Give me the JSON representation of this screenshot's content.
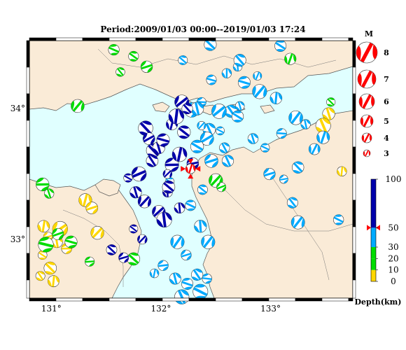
{
  "title": "Period:2009/01/03 00:00--2019/01/03 17:24",
  "axes": {
    "lon_ticks": [
      {
        "value": 131,
        "label": "131°"
      },
      {
        "value": 132,
        "label": "132°"
      },
      {
        "value": 133,
        "label": "133°"
      }
    ],
    "lat_ticks": [
      {
        "value": 34,
        "label": "34°"
      },
      {
        "value": 33,
        "label": "33°"
      }
    ],
    "lon_range": [
      130.8,
      133.75
    ],
    "lat_range": [
      32.55,
      34.52
    ]
  },
  "colors": {
    "land": "#faebd7",
    "sea": "#e0ffff",
    "coast": "#555555",
    "mainshock": "#ff0000",
    "depth_0_10": "#ffd700",
    "depth_10_20": "#00dd00",
    "depth_20_30": "#00dd00",
    "depth_30_50": "#00aaff",
    "depth_50_100": "#0000aa"
  },
  "legend": {
    "magnitude_title": "M",
    "magnitudes": [
      "8",
      "7",
      "6",
      "5",
      "4",
      "3"
    ],
    "depth_title": "Depth(km)",
    "depth_labels": [
      "100",
      "50",
      "30",
      "20",
      "10",
      "0"
    ],
    "current_depth_marker": 50
  },
  "chart_data": {
    "type": "scatter",
    "title": "Period:2009/01/03 00:00--2019/01/03 17:24",
    "xlabel": "",
    "ylabel": "",
    "xlim": [
      130.8,
      133.75
    ],
    "ylim": [
      32.55,
      34.52
    ],
    "mainshock": {
      "lon": 132.27,
      "lat": 33.54,
      "depth": 50,
      "magnitude": 4.5
    },
    "events_by_depth_class": [
      {
        "class": "0-10 km",
        "color": "#ffd700",
        "points": [
          [
            130.93,
            33.1
          ],
          [
            130.97,
            33.02
          ],
          [
            131.05,
            32.98
          ],
          [
            130.92,
            32.88
          ],
          [
            130.99,
            32.78
          ],
          [
            131.14,
            32.93
          ],
          [
            131.31,
            33.3
          ],
          [
            131.37,
            33.24
          ],
          [
            131.42,
            33.05
          ],
          [
            133.53,
            33.96
          ],
          [
            133.65,
            33.52
          ],
          [
            133.48,
            33.87
          ],
          [
            130.9,
            32.72
          ],
          [
            131.08,
            33.08
          ],
          [
            131.02,
            32.68
          ]
        ]
      },
      {
        "class": "10-30 km",
        "color": "#00dd00",
        "points": [
          [
            130.92,
            33.42
          ],
          [
            130.98,
            33.35
          ],
          [
            131.06,
            33.04
          ],
          [
            131.18,
            32.98
          ],
          [
            131.35,
            32.83
          ],
          [
            131.57,
            34.45
          ],
          [
            131.63,
            34.28
          ],
          [
            131.75,
            34.4
          ],
          [
            131.87,
            34.32
          ],
          [
            131.75,
            32.85
          ],
          [
            132.5,
            33.45
          ],
          [
            132.55,
            33.4
          ],
          [
            133.18,
            34.38
          ],
          [
            133.55,
            34.05
          ],
          [
            131.24,
            34.02
          ],
          [
            130.95,
            32.96
          ]
        ]
      },
      {
        "class": "30-50 km",
        "color": "#00aaff",
        "points": [
          [
            132.13,
            32.7
          ],
          [
            132.24,
            32.66
          ],
          [
            132.33,
            32.73
          ],
          [
            132.23,
            32.88
          ],
          [
            132.15,
            32.98
          ],
          [
            132.02,
            32.8
          ],
          [
            132.19,
            32.56
          ],
          [
            132.36,
            32.6
          ],
          [
            132.43,
            32.98
          ],
          [
            132.36,
            33.1
          ],
          [
            132.27,
            33.26
          ],
          [
            132.38,
            33.38
          ],
          [
            132.46,
            33.6
          ],
          [
            132.58,
            33.7
          ],
          [
            132.54,
            33.83
          ],
          [
            132.64,
            33.98
          ],
          [
            132.72,
            34.02
          ],
          [
            132.7,
            33.94
          ],
          [
            132.44,
            33.84
          ],
          [
            132.37,
            34.05
          ],
          [
            132.28,
            33.99
          ],
          [
            132.37,
            33.87
          ],
          [
            132.42,
            33.77
          ],
          [
            132.33,
            33.71
          ],
          [
            132.46,
            34.22
          ],
          [
            132.6,
            34.27
          ],
          [
            132.7,
            34.32
          ],
          [
            132.76,
            34.2
          ],
          [
            132.9,
            34.13
          ],
          [
            133.05,
            34.08
          ],
          [
            132.84,
            33.77
          ],
          [
            132.95,
            33.7
          ],
          [
            133.1,
            33.81
          ],
          [
            133.23,
            33.93
          ],
          [
            133.32,
            33.88
          ],
          [
            133.48,
            33.78
          ],
          [
            133.4,
            33.69
          ],
          [
            133.25,
            33.55
          ],
          [
            133.12,
            33.46
          ],
          [
            132.99,
            33.5
          ],
          [
            133.2,
            33.28
          ],
          [
            133.25,
            33.13
          ],
          [
            133.62,
            33.15
          ],
          [
            132.08,
            33.44
          ],
          [
            131.94,
            32.74
          ],
          [
            132.42,
            32.7
          ],
          [
            132.88,
            34.25
          ],
          [
            133.09,
            34.48
          ],
          [
            132.45,
            34.49
          ],
          [
            132.72,
            34.37
          ],
          [
            132.2,
            34.37
          ],
          [
            132.33,
            34.0
          ],
          [
            132.53,
            33.98
          ],
          [
            132.61,
            33.6
          ]
        ]
      },
      {
        "class": "50-100 km",
        "color": "#0000aa",
        "points": [
          [
            131.86,
            33.85
          ],
          [
            131.89,
            33.77
          ],
          [
            131.93,
            33.68
          ],
          [
            131.98,
            33.7
          ],
          [
            132.02,
            33.76
          ],
          [
            132.1,
            33.88
          ],
          [
            132.14,
            33.94
          ],
          [
            132.21,
            33.82
          ],
          [
            132.1,
            33.57
          ],
          [
            131.92,
            33.6
          ],
          [
            131.8,
            33.5
          ],
          [
            131.7,
            33.47
          ],
          [
            131.77,
            33.36
          ],
          [
            131.85,
            33.29
          ],
          [
            131.98,
            33.21
          ],
          [
            132.06,
            33.36
          ],
          [
            132.17,
            33.24
          ],
          [
            132.03,
            33.15
          ],
          [
            131.75,
            33.08
          ],
          [
            131.83,
            33.0
          ],
          [
            131.66,
            32.86
          ],
          [
            131.55,
            32.92
          ],
          [
            132.07,
            33.4
          ],
          [
            132.19,
            34.05
          ],
          [
            132.24,
            34.0
          ],
          [
            132.17,
            33.65
          ],
          [
            132.06,
            33.5
          ],
          [
            132.29,
            33.58
          ]
        ]
      }
    ]
  }
}
